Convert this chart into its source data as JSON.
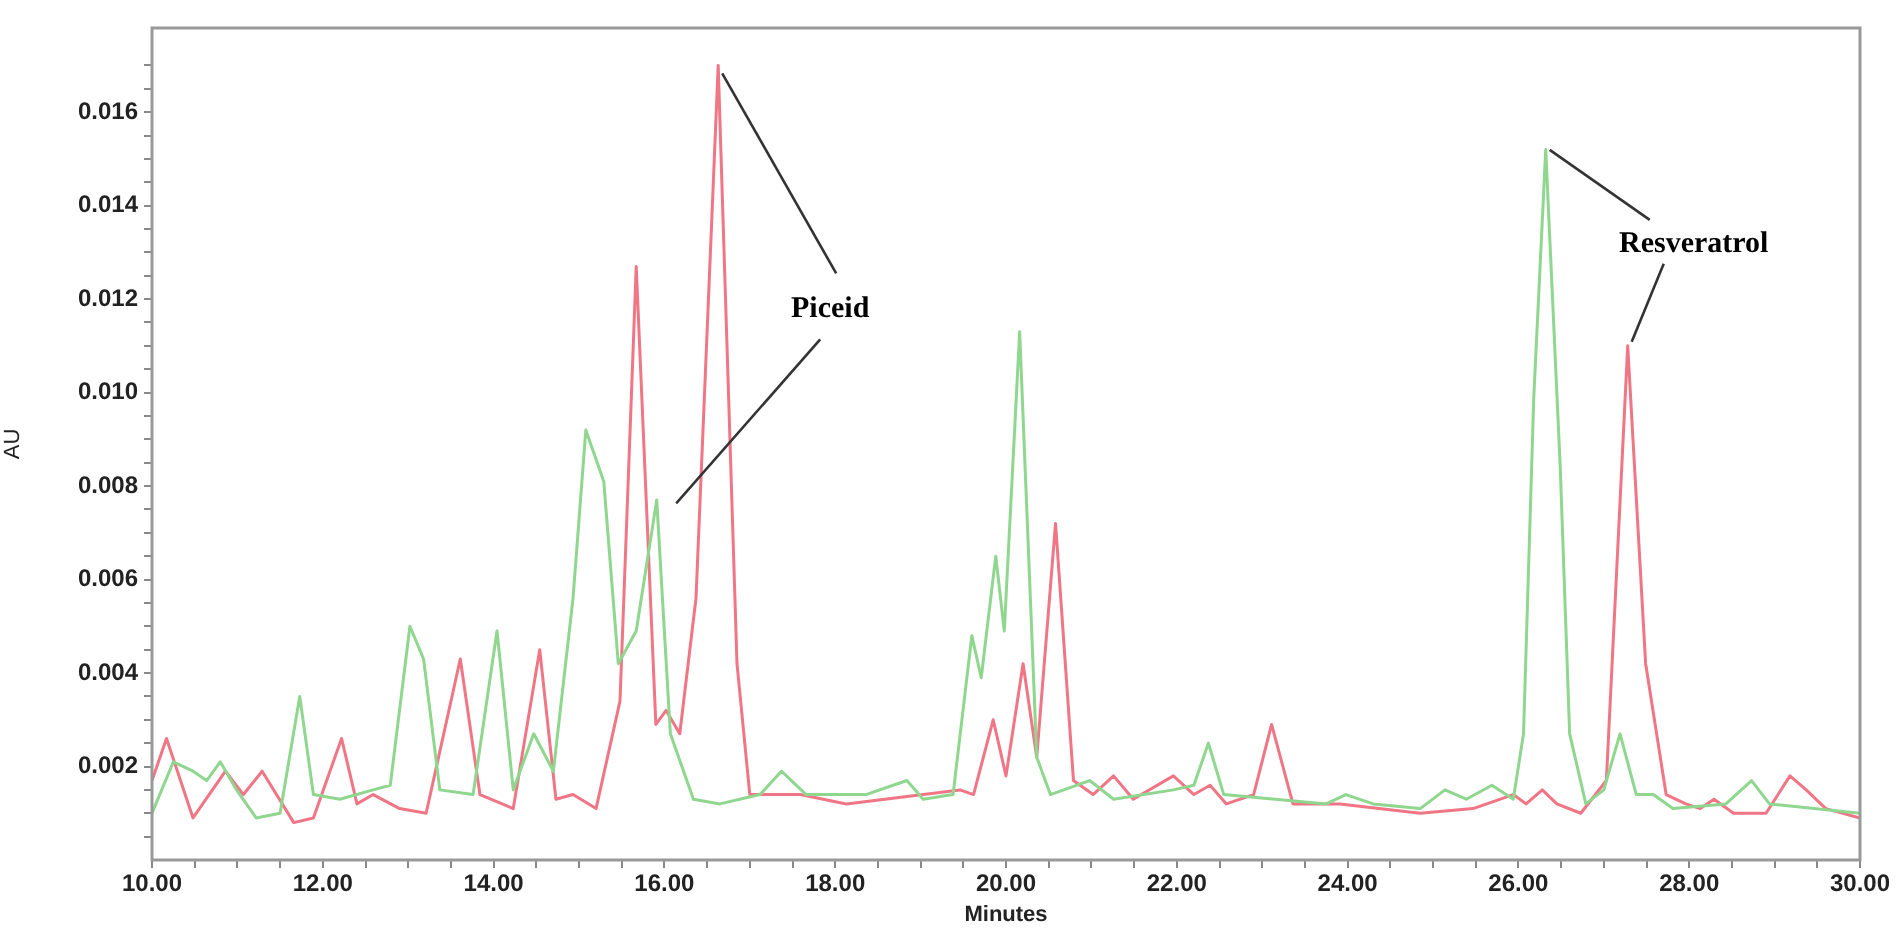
{
  "chart_data": {
    "type": "line",
    "xlabel": "Minutes",
    "ylabel": "AU",
    "xlim": [
      10,
      30
    ],
    "ylim": [
      0,
      0.0178
    ],
    "xticks": [
      {
        "value": 10,
        "label": "10.00"
      },
      {
        "value": 10.5,
        "label": null
      },
      {
        "value": 11,
        "label": null
      },
      {
        "value": 11.5,
        "label": null
      },
      {
        "value": 12,
        "label": "12.00"
      },
      {
        "value": 12.5,
        "label": null
      },
      {
        "value": 13,
        "label": null
      },
      {
        "value": 13.5,
        "label": null
      },
      {
        "value": 14,
        "label": "14.00"
      },
      {
        "value": 14.5,
        "label": null
      },
      {
        "value": 15,
        "label": null
      },
      {
        "value": 15.5,
        "label": null
      },
      {
        "value": 16,
        "label": "16.00"
      },
      {
        "value": 16.5,
        "label": null
      },
      {
        "value": 17,
        "label": null
      },
      {
        "value": 17.5,
        "label": null
      },
      {
        "value": 18,
        "label": "18.00"
      },
      {
        "value": 18.5,
        "label": null
      },
      {
        "value": 19,
        "label": null
      },
      {
        "value": 19.5,
        "label": null
      },
      {
        "value": 20,
        "label": "20.00"
      },
      {
        "value": 20.5,
        "label": null
      },
      {
        "value": 21,
        "label": null
      },
      {
        "value": 21.5,
        "label": null
      },
      {
        "value": 22,
        "label": "22.00"
      },
      {
        "value": 22.5,
        "label": null
      },
      {
        "value": 23,
        "label": null
      },
      {
        "value": 23.5,
        "label": null
      },
      {
        "value": 24,
        "label": "24.00"
      },
      {
        "value": 24.5,
        "label": null
      },
      {
        "value": 25,
        "label": null
      },
      {
        "value": 25.5,
        "label": null
      },
      {
        "value": 26,
        "label": "26.00"
      },
      {
        "value": 26.5,
        "label": null
      },
      {
        "value": 27,
        "label": null
      },
      {
        "value": 27.5,
        "label": null
      },
      {
        "value": 28,
        "label": "28.00"
      },
      {
        "value": 28.5,
        "label": null
      },
      {
        "value": 29,
        "label": null
      },
      {
        "value": 29.5,
        "label": null
      },
      {
        "value": 30,
        "label": "30.00"
      }
    ],
    "yticks": [
      {
        "value": 0.0005,
        "label": null
      },
      {
        "value": 0.001,
        "label": null
      },
      {
        "value": 0.0015,
        "label": null
      },
      {
        "value": 0.002,
        "label": "0.002"
      },
      {
        "value": 0.0025,
        "label": null
      },
      {
        "value": 0.003,
        "label": null
      },
      {
        "value": 0.0035,
        "label": null
      },
      {
        "value": 0.004,
        "label": "0.004"
      },
      {
        "value": 0.0045,
        "label": null
      },
      {
        "value": 0.005,
        "label": null
      },
      {
        "value": 0.0055,
        "label": null
      },
      {
        "value": 0.006,
        "label": "0.006"
      },
      {
        "value": 0.0065,
        "label": null
      },
      {
        "value": 0.007,
        "label": null
      },
      {
        "value": 0.0075,
        "label": null
      },
      {
        "value": 0.008,
        "label": "0.008"
      },
      {
        "value": 0.0085,
        "label": null
      },
      {
        "value": 0.009,
        "label": null
      },
      {
        "value": 0.0095,
        "label": null
      },
      {
        "value": 0.01,
        "label": "0.010"
      },
      {
        "value": 0.0105,
        "label": null
      },
      {
        "value": 0.011,
        "label": null
      },
      {
        "value": 0.0115,
        "label": null
      },
      {
        "value": 0.012,
        "label": "0.012"
      },
      {
        "value": 0.0125,
        "label": null
      },
      {
        "value": 0.013,
        "label": null
      },
      {
        "value": 0.0135,
        "label": null
      },
      {
        "value": 0.014,
        "label": "0.014"
      },
      {
        "value": 0.0145,
        "label": null
      },
      {
        "value": 0.015,
        "label": null
      },
      {
        "value": 0.0155,
        "label": null
      },
      {
        "value": 0.016,
        "label": "0.016"
      },
      {
        "value": 0.0165,
        "label": null
      },
      {
        "value": 0.017,
        "label": null
      }
    ],
    "grid": false,
    "legend": false,
    "marker": "none",
    "line_style": "solid",
    "annotations": [
      {
        "text": "Piceid",
        "x": 16.63,
        "y": 0.017
      },
      {
        "text": "Resveratrol",
        "x": 27.28,
        "y": 0.011
      }
    ],
    "series": [
      {
        "color": "#8fd68f",
        "x": [
          10.0,
          10.25,
          10.48,
          10.64,
          10.8,
          10.99,
          11.22,
          11.5,
          11.73,
          11.89,
          12.2,
          12.59,
          12.79,
          13.02,
          13.18,
          13.37,
          13.76,
          14.04,
          14.23,
          14.47,
          14.7,
          14.93,
          15.08,
          15.29,
          15.46,
          15.67,
          15.91,
          16.07,
          16.34,
          16.65,
          17.12,
          17.37,
          17.66,
          18.36,
          18.84,
          19.03,
          19.38,
          19.6,
          19.71,
          19.88,
          19.98,
          20.16,
          20.36,
          20.52,
          20.98,
          21.26,
          21.96,
          22.2,
          22.37,
          22.55,
          23.75,
          23.98,
          24.3,
          24.85,
          25.14,
          25.39,
          25.69,
          25.94,
          26.06,
          26.18,
          26.32,
          26.49,
          26.6,
          26.79,
          27.0,
          27.19,
          27.38,
          27.58,
          27.81,
          28.43,
          28.73,
          28.94,
          30.0
        ],
        "values": [
          0.001,
          0.0021,
          0.0019,
          0.0017,
          0.0021,
          0.0015,
          0.0009,
          0.001,
          0.0035,
          0.0014,
          0.0013,
          0.0015,
          0.0016,
          0.005,
          0.0043,
          0.0015,
          0.0014,
          0.0049,
          0.0015,
          0.0027,
          0.0019,
          0.0056,
          0.0092,
          0.0081,
          0.0042,
          0.0049,
          0.0077,
          0.0027,
          0.0013,
          0.0012,
          0.0014,
          0.0019,
          0.0014,
          0.0014,
          0.0017,
          0.0013,
          0.0014,
          0.0048,
          0.0039,
          0.0065,
          0.0049,
          0.0113,
          0.0022,
          0.0014,
          0.0017,
          0.0013,
          0.0015,
          0.0016,
          0.0025,
          0.0014,
          0.0012,
          0.0014,
          0.0012,
          0.0011,
          0.0015,
          0.0013,
          0.0016,
          0.0013,
          0.0027,
          0.0099,
          0.0152,
          0.0084,
          0.0027,
          0.0012,
          0.0015,
          0.0027,
          0.0014,
          0.0014,
          0.0011,
          0.0012,
          0.0017,
          0.0012,
          0.001
        ]
      },
      {
        "color": "#f07585",
        "x": [
          10.0,
          10.17,
          10.48,
          10.86,
          11.07,
          11.29,
          11.66,
          11.89,
          12.22,
          12.4,
          12.59,
          12.9,
          13.21,
          13.61,
          13.84,
          14.23,
          14.54,
          14.73,
          14.93,
          15.2,
          15.48,
          15.67,
          15.9,
          16.02,
          16.18,
          16.37,
          16.63,
          16.85,
          17.0,
          17.59,
          18.13,
          19.46,
          19.62,
          19.85,
          20.0,
          20.2,
          20.36,
          20.58,
          20.79,
          21.02,
          21.26,
          21.49,
          21.96,
          22.2,
          22.39,
          22.58,
          22.9,
          23.11,
          23.36,
          23.91,
          24.85,
          25.47,
          25.94,
          26.09,
          26.28,
          26.45,
          26.73,
          27.03,
          27.28,
          27.49,
          27.73,
          27.96,
          28.13,
          28.29,
          28.52,
          28.9,
          29.18,
          29.37,
          29.6,
          30.0
        ],
        "values": [
          0.0017,
          0.0026,
          0.0009,
          0.0019,
          0.0014,
          0.0019,
          0.0008,
          0.0009,
          0.0026,
          0.0012,
          0.0014,
          0.0011,
          0.001,
          0.0043,
          0.0014,
          0.0011,
          0.0045,
          0.0013,
          0.0014,
          0.0011,
          0.0034,
          0.0127,
          0.0029,
          0.0032,
          0.0027,
          0.0056,
          0.017,
          0.0042,
          0.0014,
          0.0014,
          0.0012,
          0.0015,
          0.0014,
          0.003,
          0.0018,
          0.0042,
          0.0022,
          0.0072,
          0.0017,
          0.0014,
          0.0018,
          0.0013,
          0.0018,
          0.0014,
          0.0016,
          0.0012,
          0.0014,
          0.0029,
          0.0012,
          0.0012,
          0.001,
          0.0011,
          0.0014,
          0.0012,
          0.0015,
          0.0012,
          0.001,
          0.0017,
          0.011,
          0.0042,
          0.0014,
          0.0012,
          0.0011,
          0.0013,
          0.001,
          0.001,
          0.0018,
          0.0015,
          0.0011,
          0.0009
        ]
      }
    ]
  }
}
